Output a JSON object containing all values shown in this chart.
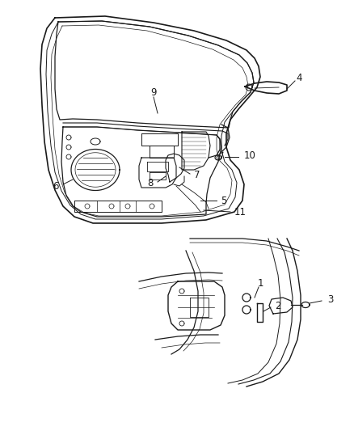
{
  "bg_color": "#ffffff",
  "line_color": "#1a1a1a",
  "label_color": "#1a1a1a",
  "fig_width": 4.38,
  "fig_height": 5.33,
  "dpi": 100,
  "font_size": 8.5,
  "line_width": 0.8
}
